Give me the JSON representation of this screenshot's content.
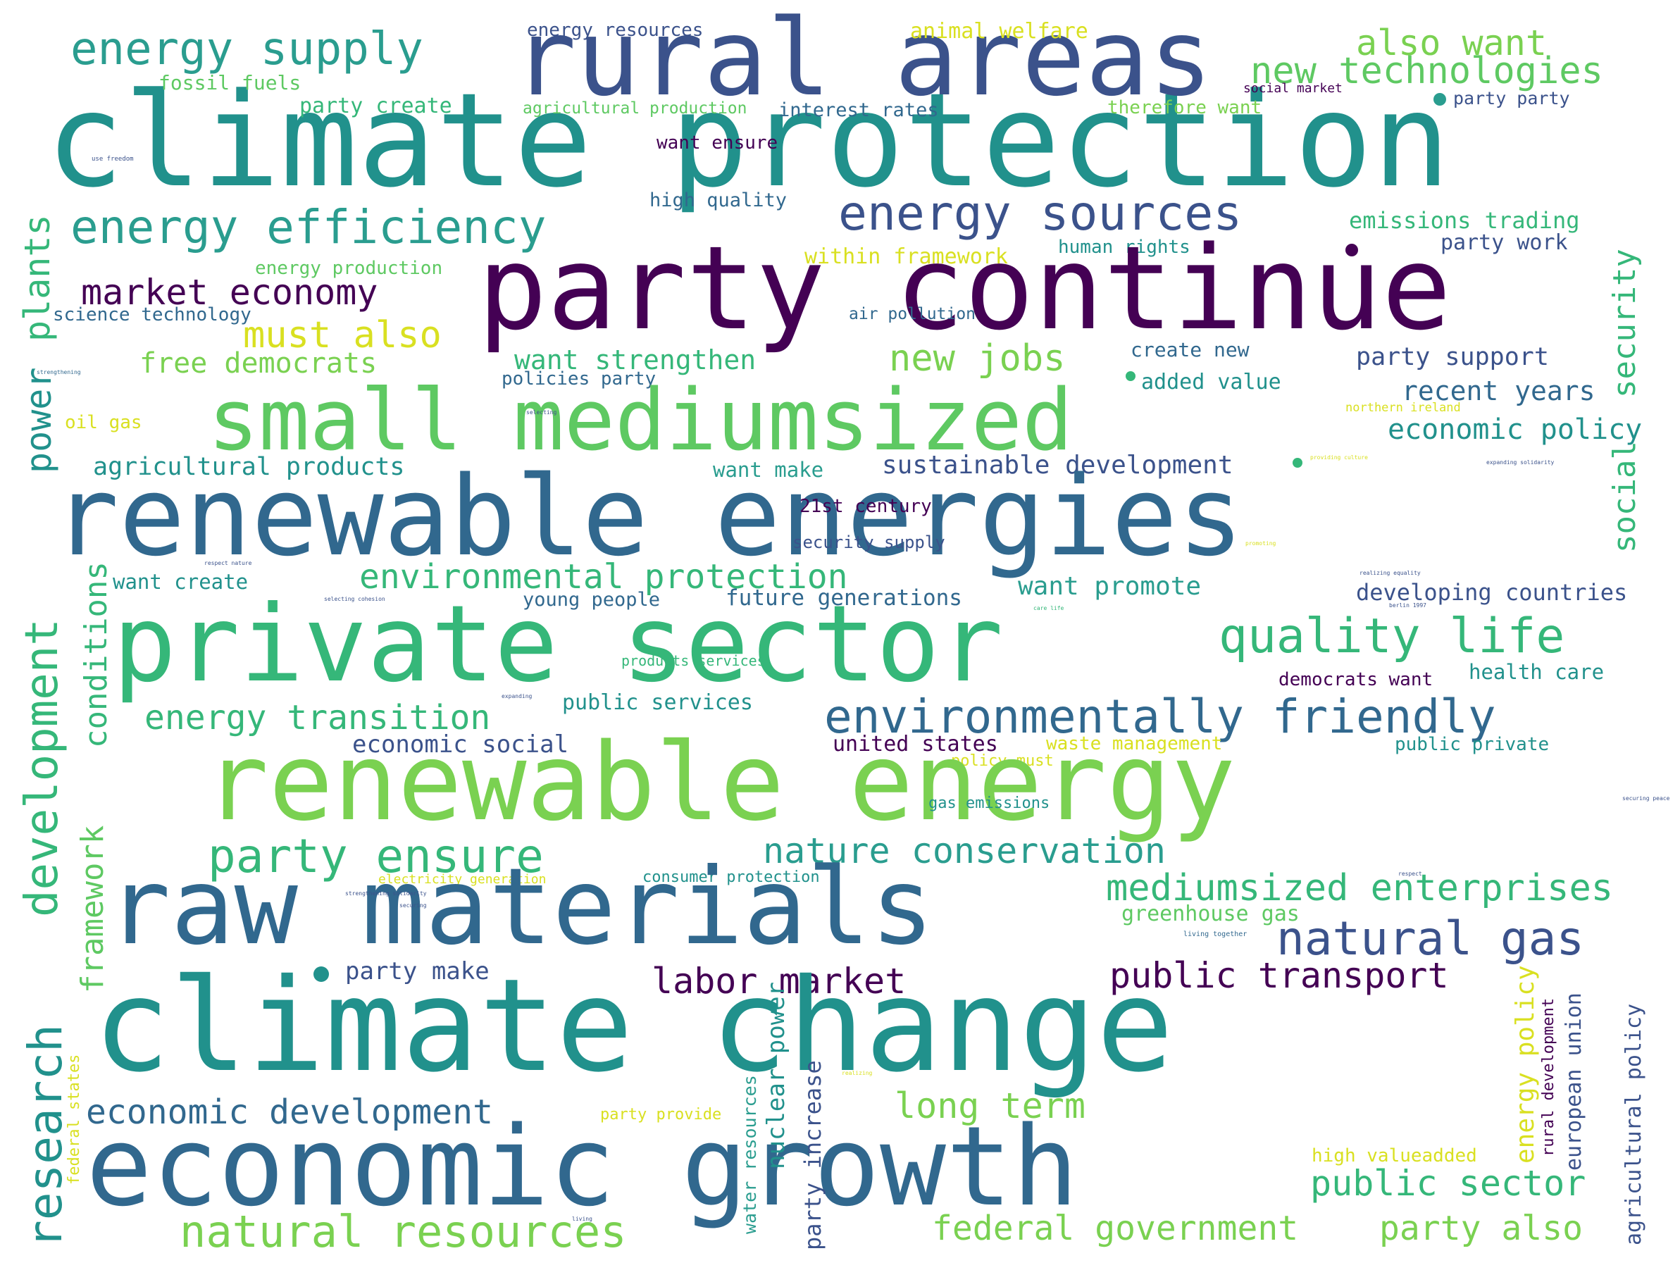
{
  "palette": {
    "p1": "#440154",
    "p2": "#3b528b",
    "p3": "#31688e",
    "p4": "#21918c",
    "p5": "#2a9d8f",
    "p6": "#35b779",
    "p7": "#5ec962",
    "p8": "#7ad151",
    "p9": "#d9e021"
  },
  "words": [
    "climate protection",
    "rural areas",
    "energy supply",
    "energy resources",
    "animal welfare",
    "also want",
    "new technologies",
    "fossil fuels",
    "party create",
    "agricultural production",
    "interest rates",
    "therefore want",
    "social market",
    "party party",
    "use freedom",
    "want ensure",
    "high quality",
    "energy efficiency",
    "energy sources",
    "emissions trading",
    "within framework",
    "human rights",
    "party work",
    "energy production",
    "party continue",
    "market economy",
    "science technology",
    "air pollution",
    "must also",
    "free democrats",
    "want strengthen",
    "create new",
    "party support",
    "policies party",
    "added value",
    "small mediumsized",
    "new jobs",
    "oil gas",
    "recent years",
    "northern ireland",
    "economic policy",
    "agricultural products",
    "want make",
    "sustainable development",
    "renewable energies",
    "21st century",
    "security supply",
    "environmental protection",
    "want create",
    "young people",
    "future generations",
    "want promote",
    "developing countries",
    "private sector",
    "quality life",
    "products services",
    "democrats want",
    "health care",
    "energy transition",
    "public services",
    "environmentally friendly",
    "economic social",
    "united states",
    "waste management",
    "public private",
    "policy must",
    "renewable energy",
    "gas emissions",
    "party ensure",
    "nature conservation",
    "electricity generation",
    "consumer protection",
    "raw materials",
    "mediumsized enterprises",
    "greenhouse gas",
    "living together",
    "natural gas",
    "party make",
    "labor market",
    "public transport",
    "climate change",
    "economic development",
    "long term",
    "party provide",
    "economic growth",
    "high valueadded",
    "public sector",
    "natural resources",
    "federal government",
    "party also",
    "plants",
    "power",
    "development",
    "conditions",
    "framework",
    "research",
    "federal states",
    "security",
    "social",
    "energy policy",
    "rural development",
    "european union",
    "agricultural policy",
    "nuclear power",
    "water resources",
    "party increase",
    "securing peace",
    "strengthening",
    "selecting",
    "respect nature",
    "selecting cohesion",
    "expanding",
    "providing culture",
    "expanding solidarity",
    "promoting",
    "realizing equality",
    "berlin 1997",
    "realizing",
    "respect",
    "strengthening solidarity",
    "securing",
    "living",
    "care life"
  ]
}
